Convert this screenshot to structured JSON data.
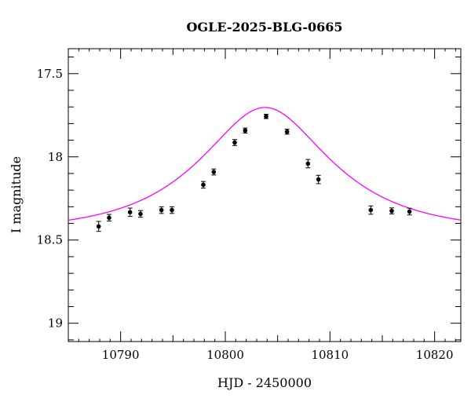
{
  "chart_data": {
    "type": "scatter",
    "title": "OGLE-2025-BLG-0665",
    "xlabel": "HJD - 2450000",
    "ylabel": "I magnitude",
    "xlim": [
      10785,
      10822.5
    ],
    "ylim": [
      17.35,
      19.11
    ],
    "y_inverted": true,
    "grid": false,
    "x_ticks": [
      10790,
      10800,
      10810,
      10820
    ],
    "y_ticks": [
      17.5,
      18,
      18.5,
      19
    ],
    "x_tick_labels": [
      "10790",
      "10800",
      "10810",
      "10820"
    ],
    "y_tick_labels": [
      "17.5",
      "18",
      "18.5",
      "19"
    ],
    "colors": {
      "model": "#ff00ff",
      "points": "#000000",
      "axes": "#000000"
    },
    "series": [
      {
        "kind": "points_with_errorbars",
        "x": [
          10787.9,
          10788.9,
          10790.9,
          10791.9,
          10793.9,
          10794.9,
          10797.9,
          10798.9,
          10800.9,
          10801.9,
          10803.9,
          10805.9,
          10807.9,
          10808.9,
          10813.9,
          10815.9,
          10817.6
        ],
        "y": [
          18.418,
          18.366,
          18.333,
          18.343,
          18.32,
          18.32,
          18.168,
          18.091,
          17.914,
          17.842,
          17.757,
          17.849,
          18.041,
          18.136,
          18.32,
          18.325,
          18.329
        ],
        "yerr": [
          0.03,
          0.02,
          0.025,
          0.02,
          0.02,
          0.02,
          0.02,
          0.018,
          0.018,
          0.015,
          0.013,
          0.015,
          0.025,
          0.025,
          0.025,
          0.018,
          0.02
        ]
      },
      {
        "kind": "model_curve",
        "model": "point-lens",
        "t0": 10803.8,
        "tE": 10.1,
        "u0": 0.56,
        "I_base": 18.45
      }
    ]
  }
}
